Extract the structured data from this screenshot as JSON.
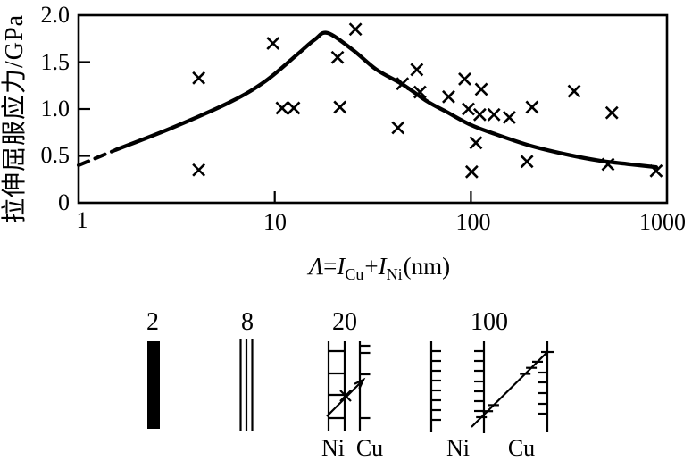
{
  "figure": {
    "y_axis": {
      "label": "拉伸屈服应力/GPa",
      "ticks": [
        "2.0",
        "1.5",
        "1.0",
        "0.5",
        "0"
      ]
    },
    "x_axis": {
      "ticks": [
        "1",
        "10",
        "100",
        "1000"
      ],
      "label_parts": {
        "lambda": "Λ",
        "eq": "=",
        "i1": "I",
        "sub1": "Cu",
        "plus": "+",
        "i2": "I",
        "sub2": "Ni",
        "unit": "(nm)"
      }
    }
  },
  "chart_data": {
    "type": "scatter",
    "title": "",
    "xlabel": "Λ = I_Cu + I_Ni (nm)",
    "ylabel": "拉伸屈服应力/GPa",
    "x_scale": "log",
    "xlim": [
      1,
      1000
    ],
    "ylim": [
      0,
      2.0
    ],
    "grid": false,
    "legend": "none",
    "marker": "x",
    "points": [
      [
        4.1,
        1.33
      ],
      [
        4.1,
        0.35
      ],
      [
        9.8,
        1.7
      ],
      [
        10.9,
        1.01
      ],
      [
        12.5,
        1.01
      ],
      [
        20.9,
        1.55
      ],
      [
        21.5,
        1.02
      ],
      [
        25.8,
        1.85
      ],
      [
        42.5,
        0.8
      ],
      [
        44.8,
        1.27
      ],
      [
        53,
        1.42
      ],
      [
        55,
        1.18
      ],
      [
        77,
        1.13
      ],
      [
        93,
        1.32
      ],
      [
        97,
        1.0
      ],
      [
        101,
        0.33
      ],
      [
        106,
        0.64
      ],
      [
        111,
        0.94
      ],
      [
        113,
        1.21
      ],
      [
        131,
        0.94
      ],
      [
        157,
        0.91
      ],
      [
        193,
        0.44
      ],
      [
        205,
        1.02
      ],
      [
        336,
        1.19
      ],
      [
        500,
        0.41
      ],
      [
        523,
        0.96
      ],
      [
        880,
        0.34
      ]
    ],
    "fit_curve": {
      "dashed_segment": [
        [
          1,
          0.4
        ],
        [
          1.55,
          0.565
        ]
      ],
      "solid": [
        [
          1.55,
          0.565
        ],
        [
          3,
          0.8
        ],
        [
          6,
          1.08
        ],
        [
          9,
          1.3
        ],
        [
          13,
          1.58
        ],
        [
          16,
          1.74
        ],
        [
          18.6,
          1.81
        ],
        [
          25,
          1.63
        ],
        [
          33,
          1.42
        ],
        [
          45,
          1.26
        ],
        [
          60,
          1.08
        ],
        [
          75,
          0.97
        ],
        [
          100,
          0.83
        ],
        [
          130,
          0.74
        ],
        [
          200,
          0.61
        ],
        [
          300,
          0.52
        ],
        [
          450,
          0.45
        ],
        [
          650,
          0.41
        ],
        [
          880,
          0.38
        ]
      ],
      "peak": [
        18.6,
        1.81
      ]
    }
  },
  "diagrams": {
    "items": [
      {
        "label": "2",
        "type": "solid-filled-layer"
      },
      {
        "label": "8",
        "type": "thin-parallel-layers"
      },
      {
        "label": "20",
        "type": "ladder-layers-with-dislocation",
        "material_labels": [
          "Ni",
          "Cu"
        ]
      },
      {
        "label": "100",
        "type": "comb-interfaces-with-glide",
        "material_labels": [
          "Ni",
          "Cu"
        ]
      }
    ]
  }
}
